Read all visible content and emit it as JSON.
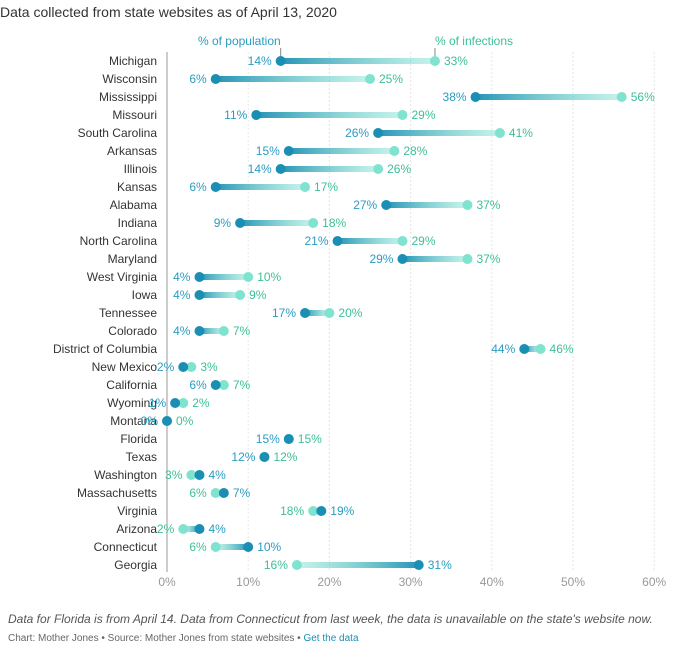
{
  "subtitle": "Data collected from state websites as of April 13, 2020",
  "note": "Data for Florida is from April 14. Data from Connecticut from last week, the data is unavailable on the state's website now.",
  "source": {
    "prefix": "Chart: Mother Jones • Source: Mother Jones from state websites • ",
    "link_label": "Get the data"
  },
  "colors": {
    "population": "#1b8fb3",
    "infections": "#7fe3cf",
    "label_population": "#2a9cc1",
    "label_infections": "#3dbf99",
    "grid": "#e6e6e6",
    "zero_line": "#999999"
  },
  "chart_data": {
    "type": "dot-range",
    "legend": {
      "population": "% of population",
      "infections": "% of infections"
    },
    "x_ticks": [
      "0%",
      "10%",
      "20%",
      "30%",
      "40%",
      "50%",
      "60%"
    ],
    "xlim": [
      0,
      60
    ],
    "unit": "%",
    "categories": [
      "Michigan",
      "Wisconsin",
      "Mississippi",
      "Missouri",
      "South Carolina",
      "Arkansas",
      "Illinois",
      "Kansas",
      "Alabama",
      "Indiana",
      "North Carolina",
      "Maryland",
      "West Virginia",
      "Iowa",
      "Tennessee",
      "Colorado",
      "District of Columbia",
      "New Mexico",
      "California",
      "Wyoming",
      "Montana",
      "Florida",
      "Texas",
      "Washington",
      "Massachusetts",
      "Virginia",
      "Arizona",
      "Connecticut",
      "Georgia"
    ],
    "series": [
      {
        "name": "% of population",
        "values": [
          14,
          6,
          38,
          11,
          26,
          15,
          14,
          6,
          27,
          9,
          21,
          29,
          4,
          4,
          17,
          4,
          44,
          2,
          6,
          1,
          0,
          15,
          12,
          4,
          7,
          19,
          4,
          10,
          31
        ]
      },
      {
        "name": "% of infections",
        "values": [
          33,
          25,
          56,
          29,
          41,
          28,
          26,
          17,
          37,
          18,
          29,
          37,
          10,
          9,
          20,
          7,
          46,
          3,
          7,
          2,
          0,
          15,
          12,
          3,
          6,
          18,
          2,
          6,
          16
        ]
      }
    ]
  }
}
